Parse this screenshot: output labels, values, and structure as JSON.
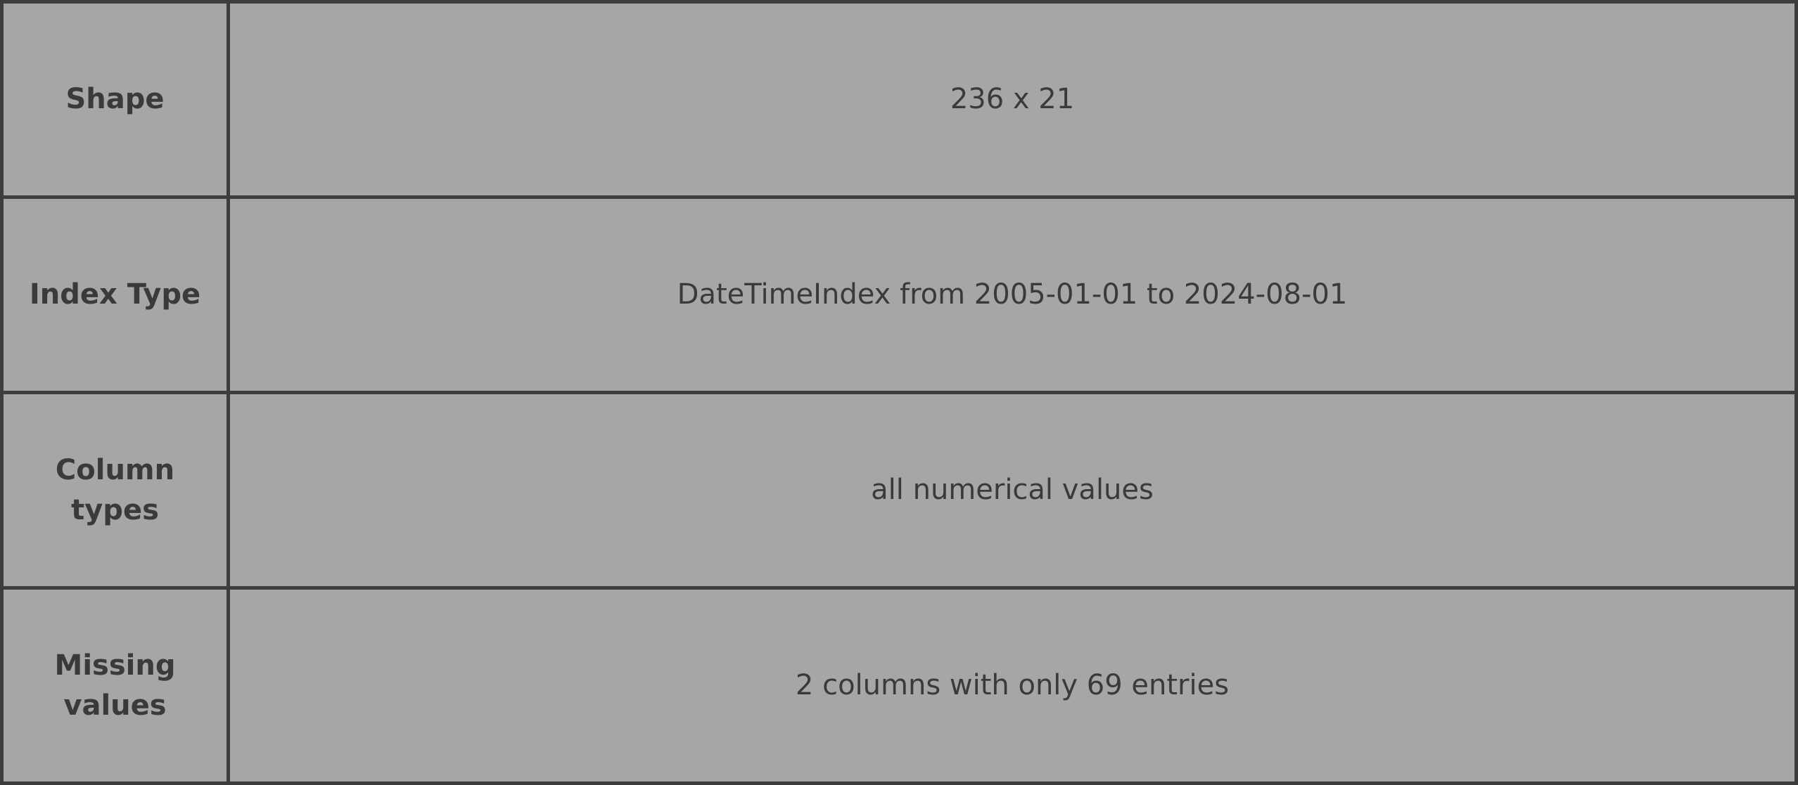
{
  "table": {
    "rows": [
      {
        "label": "Shape",
        "value": "236 x 21"
      },
      {
        "label": "Index Type",
        "value": "DateTimeIndex from 2005-01-01 to 2024-08-01"
      },
      {
        "label": "Column types",
        "value": "all numerical values"
      },
      {
        "label": "Missing values",
        "value": "2 columns with only 69 entries"
      }
    ]
  }
}
